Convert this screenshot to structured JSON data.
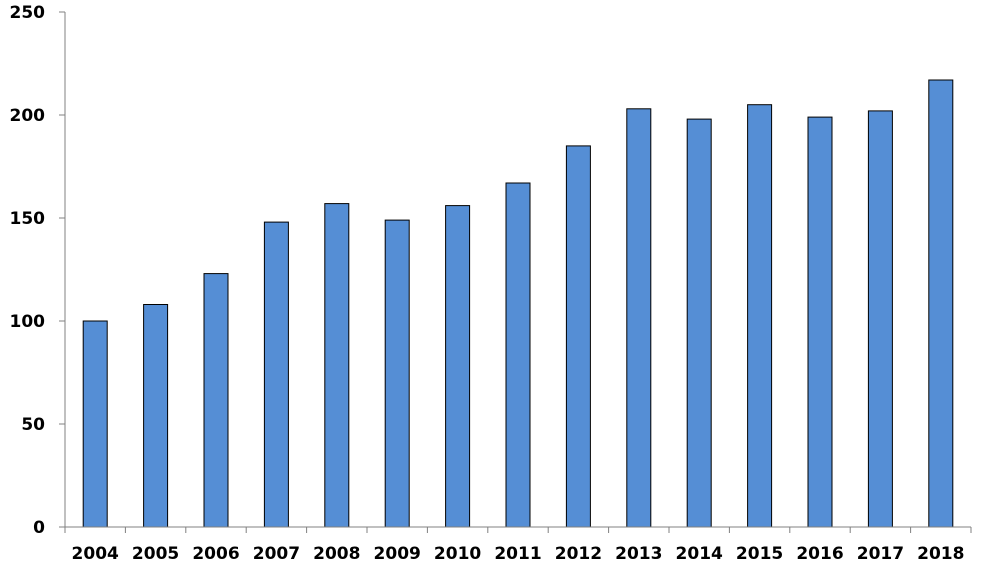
{
  "chart_data": {
    "type": "bar",
    "title": "",
    "xlabel": "",
    "ylabel": "",
    "categories": [
      "2004",
      "2005",
      "2006",
      "2007",
      "2008",
      "2009",
      "2010",
      "2011",
      "2012",
      "2013",
      "2014",
      "2015",
      "2016",
      "2017",
      "2018"
    ],
    "values": [
      100,
      108,
      123,
      148,
      157,
      149,
      156,
      167,
      185,
      203,
      198,
      205,
      199,
      202,
      217
    ],
    "ylim": [
      0,
      250
    ],
    "yticks": [
      "0",
      "50",
      "100",
      "150",
      "200",
      "250"
    ],
    "grid": false,
    "legend": "none",
    "colors": {
      "bar_fill": "#558ed5",
      "bar_stroke": "#000000",
      "axis": "#808080",
      "text": "#000000"
    }
  }
}
